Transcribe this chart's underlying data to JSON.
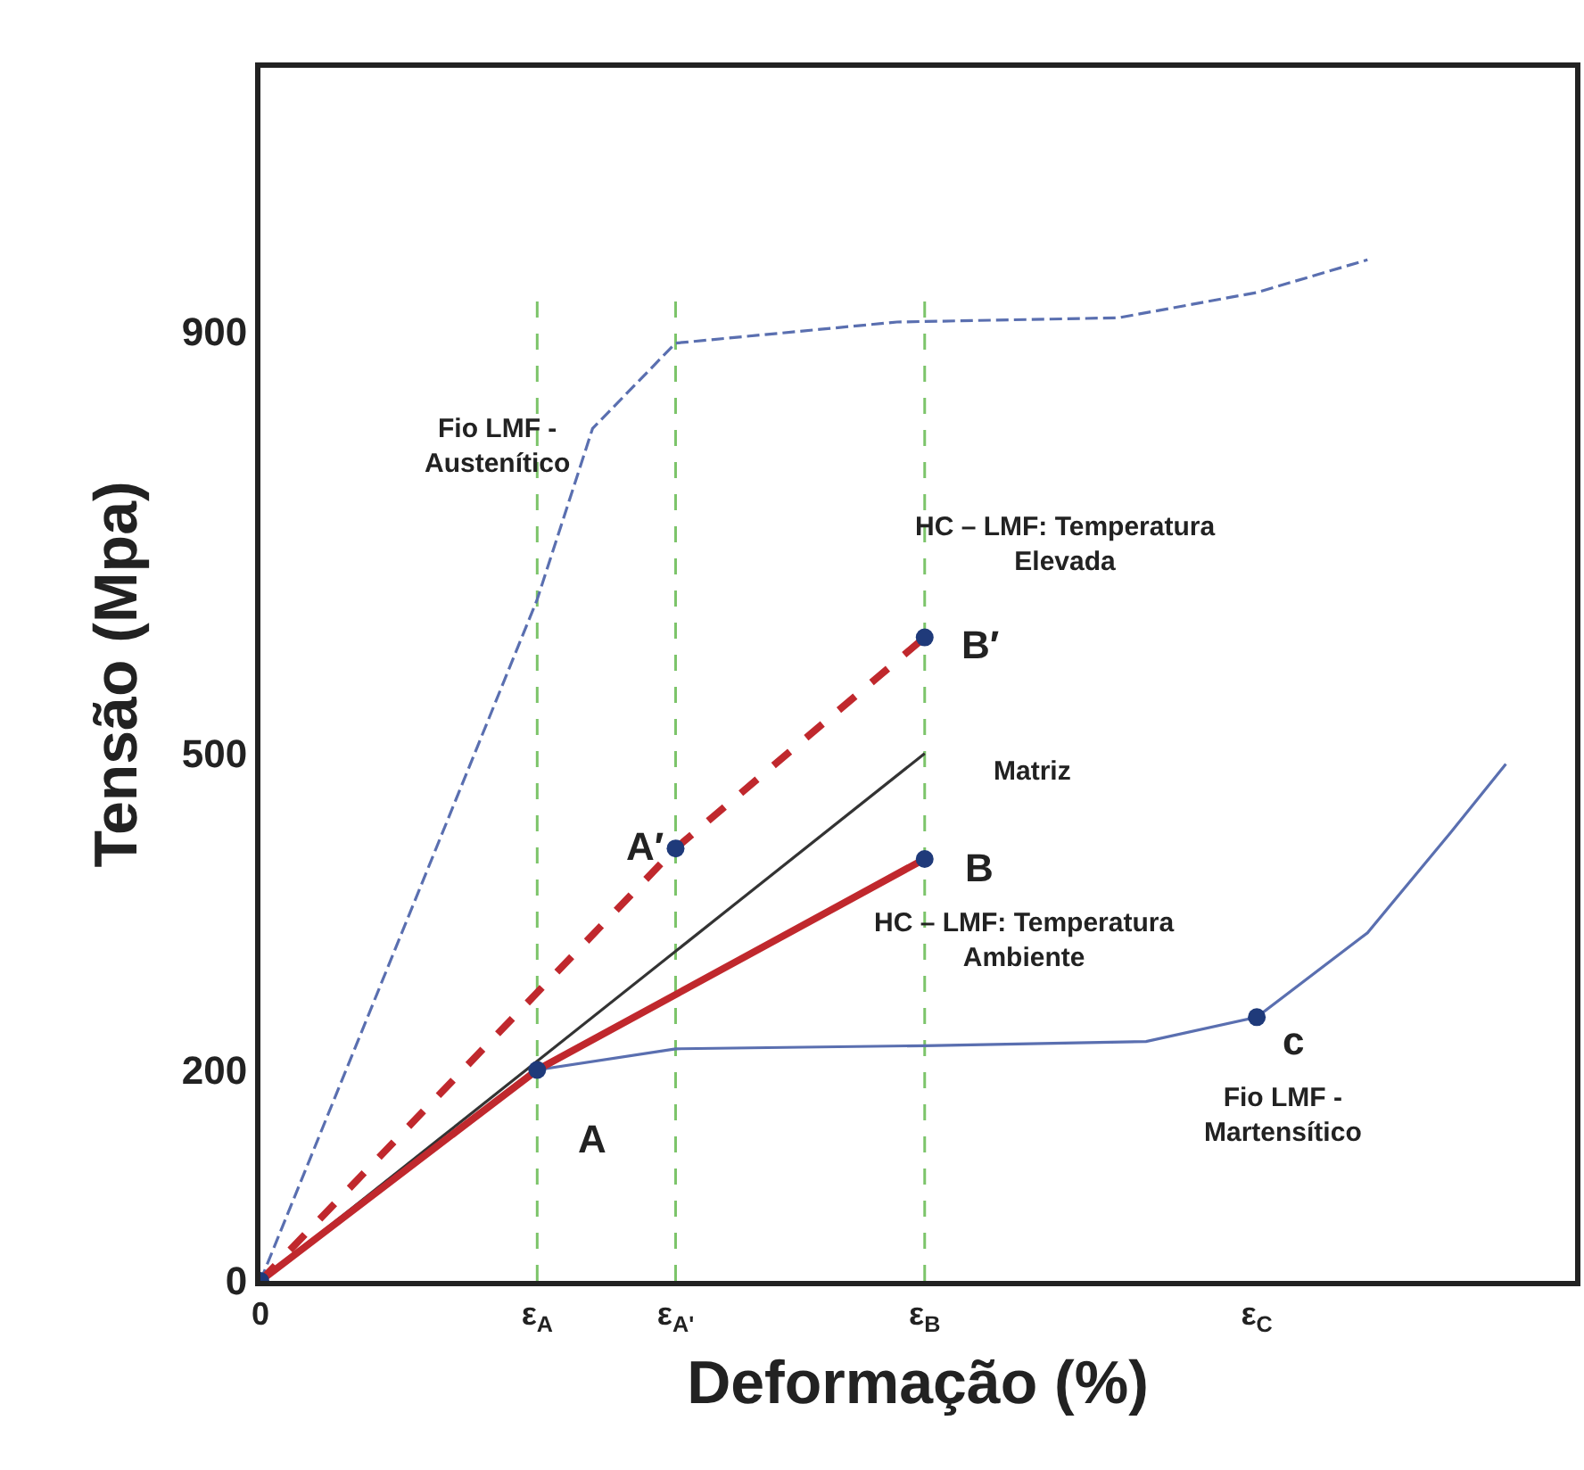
{
  "chart_data": {
    "type": "line",
    "xlabel": "Deformação (%)",
    "ylabel": "Tensão (Mpa)",
    "categories": [
      "0",
      null,
      null,
      null,
      null,
      null,
      null,
      null,
      null,
      null,
      "ε$_{A}$",
      null,
      null,
      null,
      null,
      "ε$_{A'}$",
      null,
      null,
      null,
      null,
      null,
      null,
      null,
      null,
      "ε$_{B}$",
      null,
      null,
      null,
      null,
      null,
      null,
      null,
      null,
      null,
      null,
      null,
      "ε$_{C}$",
      null,
      null,
      null,
      null,
      null,
      null,
      null,
      null,
      null,
      null,
      null
    ],
    "ylim": [
      0,
      1150
    ],
    "yticks": [
      0,
      200,
      500,
      900
    ],
    "grid": false,
    "legend": false,
    "series": [
      {
        "name": "Fio LMF -\nAustenítico",
        "color": "#5a6fb0",
        "line_style": "dashed",
        "values": [
          0,
          null,
          null,
          null,
          null,
          null,
          null,
          null,
          null,
          null,
          646,
          null,
          808,
          null,
          null,
          889,
          null,
          null,
          null,
          null,
          null,
          null,
          null,
          909,
          null,
          null,
          null,
          null,
          null,
          null,
          null,
          913,
          null,
          null,
          null,
          null,
          937,
          null,
          null,
          null,
          968,
          null,
          null,
          null,
          null,
          null,
          null,
          null
        ]
      },
      {
        "name": "Fio LMF -\nMartensítico",
        "color": "#5a6fb0",
        "line_style": "solid",
        "values": [
          0,
          null,
          null,
          null,
          null,
          null,
          null,
          null,
          null,
          null,
          200,
          null,
          null,
          null,
          null,
          220,
          null,
          null,
          null,
          null,
          null,
          null,
          null,
          null,
          223,
          null,
          null,
          null,
          null,
          null,
          null,
          null,
          227,
          null,
          null,
          null,
          250,
          null,
          null,
          null,
          330,
          null,
          null,
          425,
          null,
          490,
          null,
          null
        ]
      },
      {
        "name": "Matriz",
        "color": "#333333",
        "line_style": "solid",
        "values": [
          0,
          null,
          null,
          null,
          null,
          null,
          null,
          null,
          null,
          null,
          null,
          null,
          null,
          null,
          null,
          null,
          null,
          null,
          null,
          null,
          null,
          null,
          null,
          null,
          500,
          null,
          null,
          null,
          null,
          null,
          null,
          null,
          null,
          null,
          null,
          null,
          null,
          null,
          null,
          null,
          null,
          null,
          null,
          null,
          null,
          null,
          null,
          null
        ]
      },
      {
        "name": "HC – LMF: Temperatura\nAmbiente",
        "color": "#c0282d",
        "line_style": "solid",
        "values": [
          0,
          null,
          null,
          null,
          null,
          null,
          null,
          null,
          null,
          null,
          200,
          null,
          null,
          null,
          null,
          null,
          null,
          null,
          null,
          null,
          null,
          null,
          null,
          null,
          400,
          null,
          null,
          null,
          null,
          null,
          null,
          null,
          null,
          null,
          null,
          null,
          null,
          null,
          null,
          null,
          null,
          null,
          null,
          null,
          null,
          null,
          null,
          null
        ]
      },
      {
        "name": "HC – LMF: Temperatura\nElevada",
        "color": "#c0282d",
        "line_style": "dashed",
        "values": [
          0,
          null,
          null,
          null,
          null,
          null,
          null,
          null,
          null,
          null,
          null,
          null,
          null,
          null,
          null,
          410,
          null,
          null,
          null,
          null,
          null,
          null,
          null,
          null,
          610,
          null,
          null,
          null,
          null,
          null,
          null,
          null,
          null,
          null,
          null,
          null,
          null,
          null,
          null,
          null,
          null,
          null,
          null,
          null,
          null,
          null,
          null,
          null
        ]
      },
      {
        "type": "scatter",
        "marker": "circle",
        "color": "#1f3a7a",
        "values": [
          0,
          null,
          null,
          null,
          null,
          null,
          null,
          null,
          null,
          null,
          200,
          null,
          null,
          null,
          null,
          410,
          null,
          null,
          null,
          null,
          null,
          null,
          null,
          null,
          400,
          null,
          null,
          null,
          null,
          null,
          null,
          null,
          null,
          null,
          null,
          null,
          250,
          null,
          null,
          null,
          null,
          null,
          null,
          null,
          null,
          null,
          null,
          null
        ]
      },
      {
        "type": "scatter",
        "marker": "circle",
        "color": "#1f3a7a",
        "values": [
          null,
          null,
          null,
          null,
          null,
          null,
          null,
          null,
          null,
          null,
          null,
          null,
          null,
          null,
          null,
          null,
          null,
          null,
          null,
          null,
          null,
          null,
          null,
          null,
          610,
          null,
          null,
          null,
          null,
          null,
          null,
          null,
          null,
          null,
          null,
          null,
          null,
          null,
          null,
          null,
          null,
          null,
          null,
          null,
          null,
          null,
          null,
          null
        ]
      }
    ],
    "ref_lines": [
      {
        "axis": "x",
        "value": "ε$_{A}$",
        "color": "#7cc46a",
        "line_style": "dashed"
      },
      {
        "axis": "x",
        "value": "ε$_{A'}$",
        "color": "#7cc46a",
        "line_style": "dashed"
      },
      {
        "axis": "x",
        "value": "ε$_{B}$",
        "color": "#7cc46a",
        "line_style": "dashed"
      }
    ],
    "annotations": [
      "A",
      "A′",
      "B",
      "B′",
      "c"
    ]
  }
}
